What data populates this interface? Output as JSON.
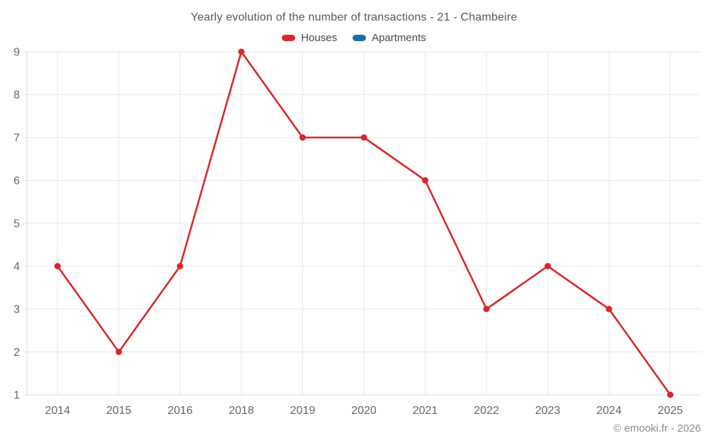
{
  "chart": {
    "title": "Yearly evolution of the number of transactions - 21 - Chambeire",
    "copyright": "© emooki.fr - 2026"
  },
  "chart_data": {
    "type": "line",
    "title": "Yearly evolution of the number of transactions - 21 - Chambeire",
    "categories": [
      "2014",
      "2015",
      "2016",
      "2018",
      "2019",
      "2020",
      "2021",
      "2022",
      "2023",
      "2024",
      "2025"
    ],
    "series": [
      {
        "name": "Houses",
        "color": "#d7282d",
        "values": [
          4,
          2,
          4,
          9,
          7,
          7,
          6,
          3,
          4,
          3,
          1
        ]
      },
      {
        "name": "Apartments",
        "color": "#1d6fa5",
        "values": []
      }
    ],
    "xlabel": "",
    "ylabel": "",
    "yticks": [
      1,
      2,
      3,
      4,
      5,
      6,
      7,
      8,
      9
    ],
    "ylim": [
      1,
      9
    ],
    "grid": true,
    "grid_color": "#e7e7e7",
    "axis_line_color": "#d9dde1",
    "tick_label_color": "#666666",
    "legend_position": "top",
    "marker_radius": 4.5,
    "line_width": 2.6
  }
}
